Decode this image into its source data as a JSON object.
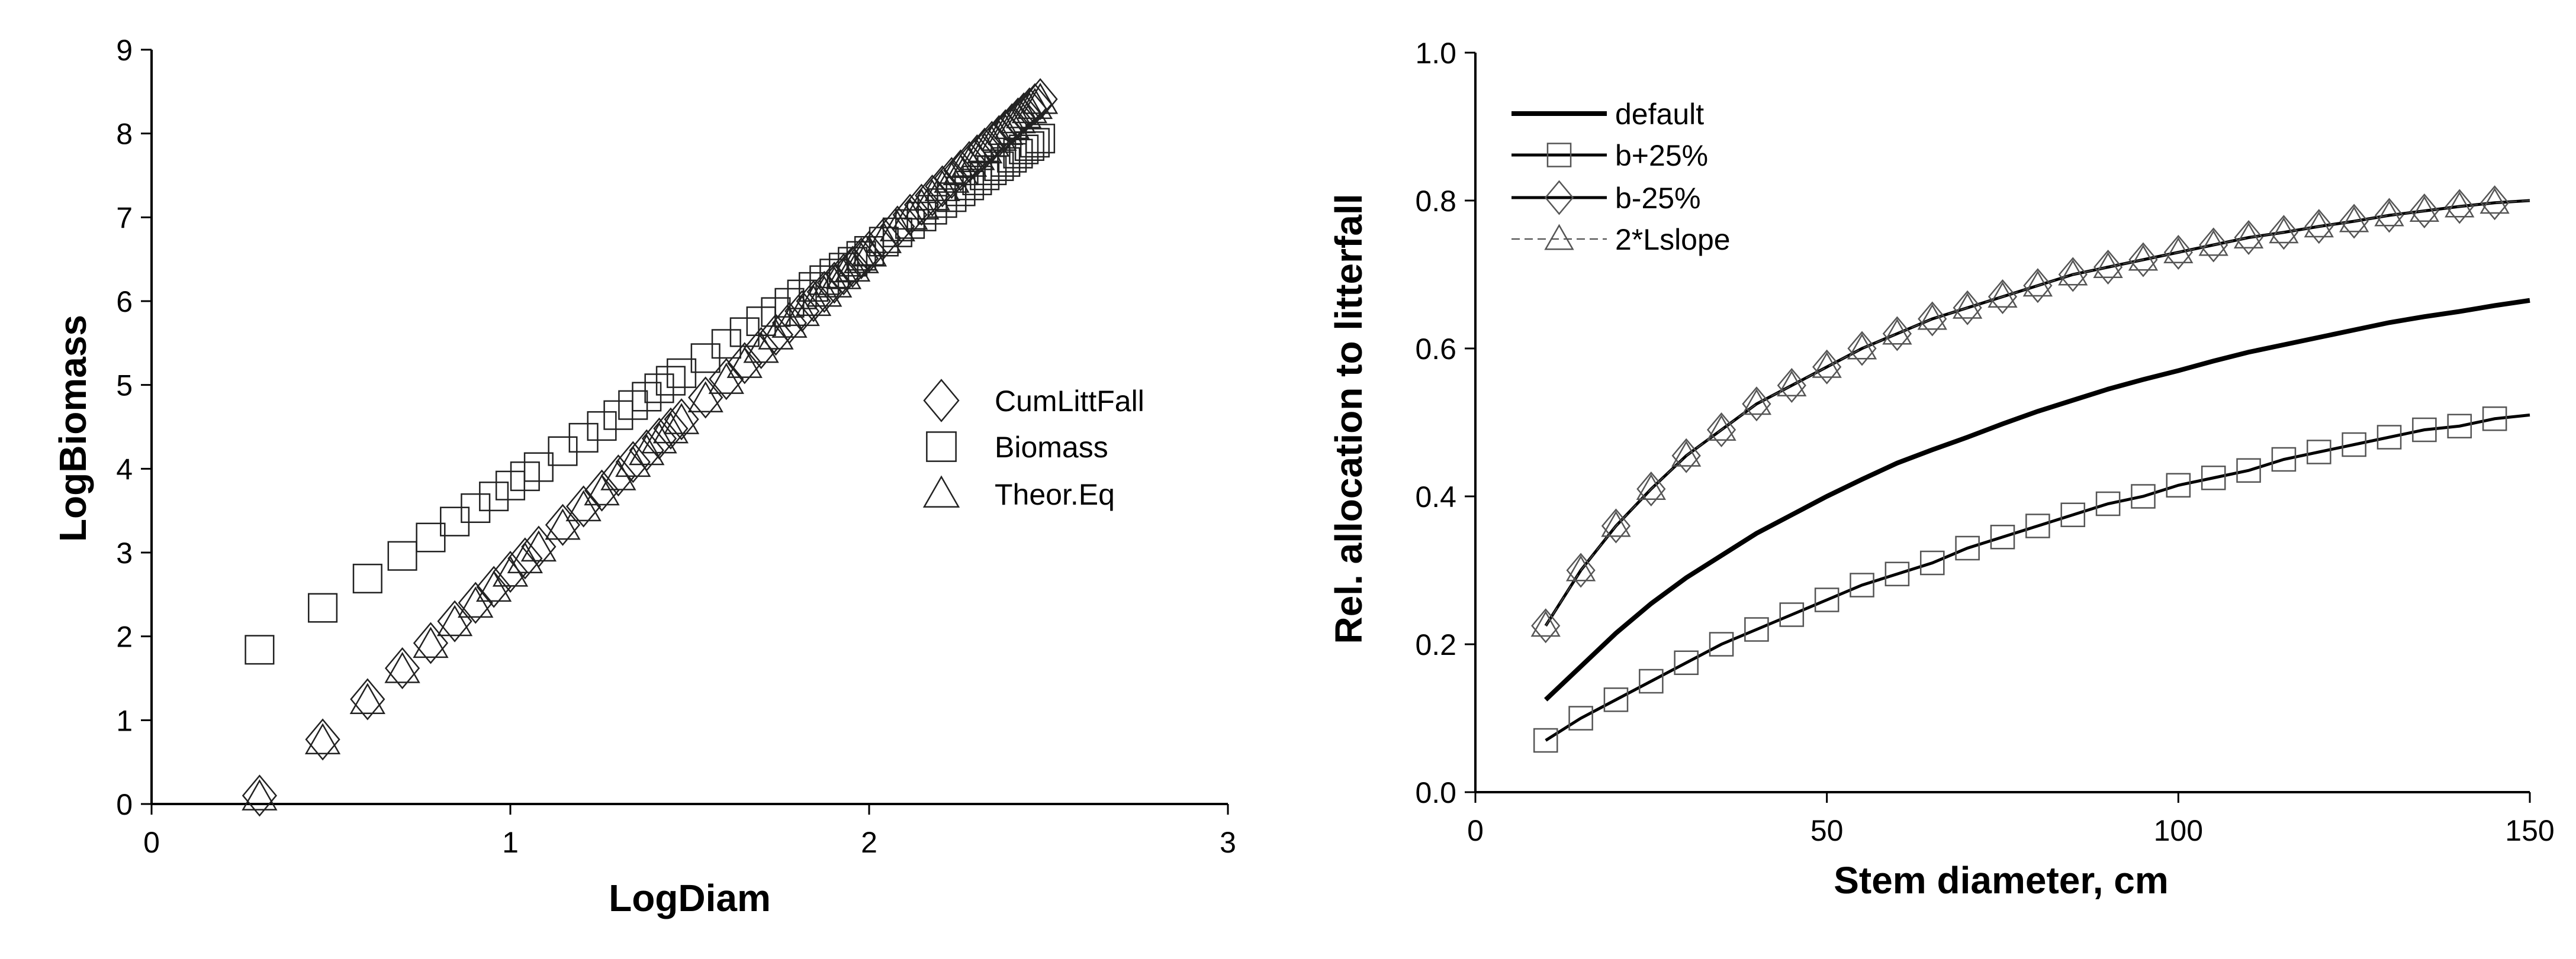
{
  "chart_data": [
    {
      "type": "scatter",
      "xlabel": "LogDiam",
      "ylabel": "LogBiomass",
      "xlim": [
        0,
        3
      ],
      "ylim": [
        0,
        9
      ],
      "xticks": [
        "0",
        "1",
        "2",
        "3"
      ],
      "yticks": [
        "0",
        "1",
        "2",
        "3",
        "4",
        "5",
        "6",
        "7",
        "8",
        "9"
      ],
      "grid": false,
      "legend_position": "right-middle",
      "x": [
        0.301,
        0.477,
        0.602,
        0.699,
        0.778,
        0.845,
        0.903,
        0.954,
        1.0,
        1.041,
        1.079,
        1.146,
        1.204,
        1.255,
        1.301,
        1.342,
        1.38,
        1.415,
        1.447,
        1.477,
        1.544,
        1.602,
        1.653,
        1.699,
        1.74,
        1.778,
        1.813,
        1.845,
        1.875,
        1.903,
        1.929,
        1.954,
        1.978,
        2.0,
        2.041,
        2.079,
        2.114,
        2.146,
        2.176,
        2.204,
        2.23,
        2.255,
        2.279,
        2.301,
        2.322,
        2.342,
        2.362,
        2.38,
        2.398,
        2.415,
        2.431,
        2.447,
        2.462,
        2.477
      ],
      "series": [
        {
          "name": "CumLittFall",
          "marker": "diamond",
          "values": [
            0.1,
            0.77,
            1.25,
            1.62,
            1.92,
            2.18,
            2.4,
            2.59,
            2.77,
            2.93,
            3.07,
            3.33,
            3.55,
            3.74,
            3.92,
            4.08,
            4.22,
            4.36,
            4.48,
            4.59,
            4.85,
            5.07,
            5.26,
            5.44,
            5.6,
            5.74,
            5.88,
            6.0,
            6.11,
            6.22,
            6.32,
            6.41,
            6.51,
            6.59,
            6.75,
            6.89,
            7.03,
            7.15,
            7.26,
            7.37,
            7.47,
            7.56,
            7.66,
            7.74,
            7.82,
            7.9,
            7.97,
            8.04,
            8.11,
            8.18,
            8.24,
            8.3,
            8.35,
            8.41
          ]
        },
        {
          "name": "Biomass",
          "marker": "square",
          "values": [
            1.84,
            2.34,
            2.69,
            2.96,
            3.18,
            3.37,
            3.53,
            3.67,
            3.8,
            3.91,
            4.02,
            4.21,
            4.37,
            4.51,
            4.64,
            4.76,
            4.86,
            4.96,
            5.05,
            5.14,
            5.32,
            5.49,
            5.63,
            5.76,
            5.87,
            5.98,
            6.08,
            6.17,
            6.25,
            6.33,
            6.4,
            6.47,
            6.54,
            6.6,
            6.71,
            6.82,
            6.92,
            7.01,
            7.09,
            7.17,
            7.24,
            7.31,
            7.38,
            7.44,
            7.5,
            7.56,
            7.61,
            7.66,
            7.71,
            7.76,
            7.81,
            7.85,
            7.89,
            7.94
          ]
        },
        {
          "name": "Theor.Eq",
          "marker": "triangle",
          "values": [
            0.08,
            0.75,
            1.23,
            1.6,
            1.9,
            2.16,
            2.38,
            2.57,
            2.75,
            2.91,
            3.05,
            3.31,
            3.53,
            3.72,
            3.9,
            4.06,
            4.2,
            4.34,
            4.46,
            4.57,
            4.83,
            5.05,
            5.24,
            5.42,
            5.58,
            5.72,
            5.86,
            5.98,
            6.09,
            6.2,
            6.3,
            6.39,
            6.49,
            6.57,
            6.73,
            6.87,
            7.01,
            7.13,
            7.24,
            7.35,
            7.45,
            7.54,
            7.64,
            7.72,
            7.8,
            7.88,
            7.95,
            8.02,
            8.09,
            8.16,
            8.22,
            8.28,
            8.33,
            8.39
          ]
        }
      ]
    },
    {
      "type": "line",
      "xlabel": "Stem diameter, cm",
      "ylabel": "Rel. allocation to litterfall",
      "xlim": [
        0,
        150
      ],
      "ylim": [
        0,
        1.0
      ],
      "xticks": [
        "0",
        "50",
        "100",
        "150"
      ],
      "yticks": [
        "0.0",
        "0.2",
        "0.4",
        "0.6",
        "0.8",
        "1.0"
      ],
      "grid": false,
      "legend_position": "top-left",
      "x": [
        10,
        15,
        20,
        25,
        30,
        35,
        40,
        45,
        50,
        55,
        60,
        65,
        70,
        75,
        80,
        85,
        90,
        95,
        100,
        105,
        110,
        115,
        120,
        125,
        130,
        135,
        140,
        145,
        150
      ],
      "series": [
        {
          "name": "default",
          "marker": "none",
          "line": "thick",
          "values": [
            0.125,
            0.17,
            0.215,
            0.255,
            0.29,
            0.32,
            0.35,
            0.375,
            0.4,
            0.423,
            0.445,
            0.463,
            0.48,
            0.498,
            0.515,
            0.53,
            0.545,
            0.558,
            0.57,
            0.583,
            0.595,
            0.605,
            0.615,
            0.625,
            0.635,
            0.643,
            0.65,
            0.658,
            0.665
          ]
        },
        {
          "name": "b+25%",
          "marker": "square",
          "line": "solid",
          "values": [
            0.07,
            0.1,
            0.125,
            0.15,
            0.175,
            0.2,
            0.22,
            0.24,
            0.26,
            0.28,
            0.295,
            0.31,
            0.33,
            0.345,
            0.36,
            0.375,
            0.39,
            0.4,
            0.415,
            0.425,
            0.435,
            0.45,
            0.46,
            0.47,
            0.48,
            0.49,
            0.495,
            0.505,
            0.51
          ]
        },
        {
          "name": "b-25%",
          "marker": "diamond",
          "line": "solid",
          "values": [
            0.225,
            0.3,
            0.36,
            0.41,
            0.455,
            0.49,
            0.525,
            0.55,
            0.575,
            0.6,
            0.62,
            0.64,
            0.655,
            0.67,
            0.685,
            0.7,
            0.71,
            0.72,
            0.73,
            0.74,
            0.75,
            0.757,
            0.765,
            0.772,
            0.78,
            0.786,
            0.792,
            0.797,
            0.8
          ]
        },
        {
          "name": "2*Lslope",
          "marker": "triangle",
          "line": "dashed",
          "values": [
            0.225,
            0.3,
            0.36,
            0.41,
            0.455,
            0.49,
            0.525,
            0.55,
            0.575,
            0.6,
            0.62,
            0.64,
            0.655,
            0.67,
            0.685,
            0.7,
            0.71,
            0.72,
            0.73,
            0.74,
            0.75,
            0.757,
            0.765,
            0.772,
            0.78,
            0.786,
            0.792,
            0.797,
            0.8
          ]
        }
      ]
    }
  ]
}
